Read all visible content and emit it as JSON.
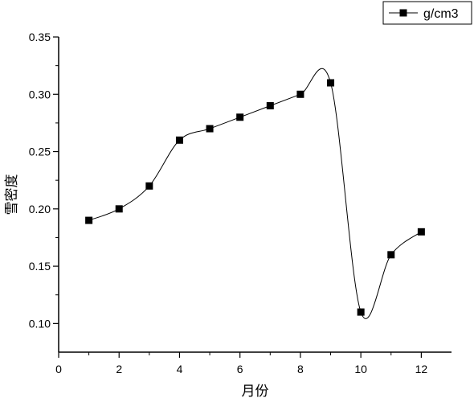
{
  "chart_data": {
    "type": "line",
    "title": "",
    "xlabel": "月份",
    "ylabel": "雪密度",
    "xlim": [
      0,
      13
    ],
    "ylim": [
      0.075,
      0.35
    ],
    "xticks": [
      0,
      2,
      4,
      6,
      8,
      10,
      12
    ],
    "xtick_labels": [
      "0",
      "2",
      "4",
      "6",
      "8",
      "10",
      "12"
    ],
    "yticks": [
      0.1,
      0.15,
      0.2,
      0.25,
      0.3,
      0.35
    ],
    "ytick_labels": [
      "0.10",
      "0.15",
      "0.20",
      "0.25",
      "0.30",
      "0.35"
    ],
    "grid": false,
    "legend_position": "top-right",
    "smooth": true,
    "series": [
      {
        "name": "g/cm3",
        "color": "#000000",
        "marker": "square",
        "x": [
          1,
          2,
          3,
          4,
          5,
          6,
          7,
          8,
          9,
          10,
          11,
          12
        ],
        "y": [
          0.19,
          0.2,
          0.22,
          0.26,
          0.27,
          0.28,
          0.29,
          0.3,
          0.31,
          0.11,
          0.16,
          0.18
        ]
      }
    ]
  }
}
